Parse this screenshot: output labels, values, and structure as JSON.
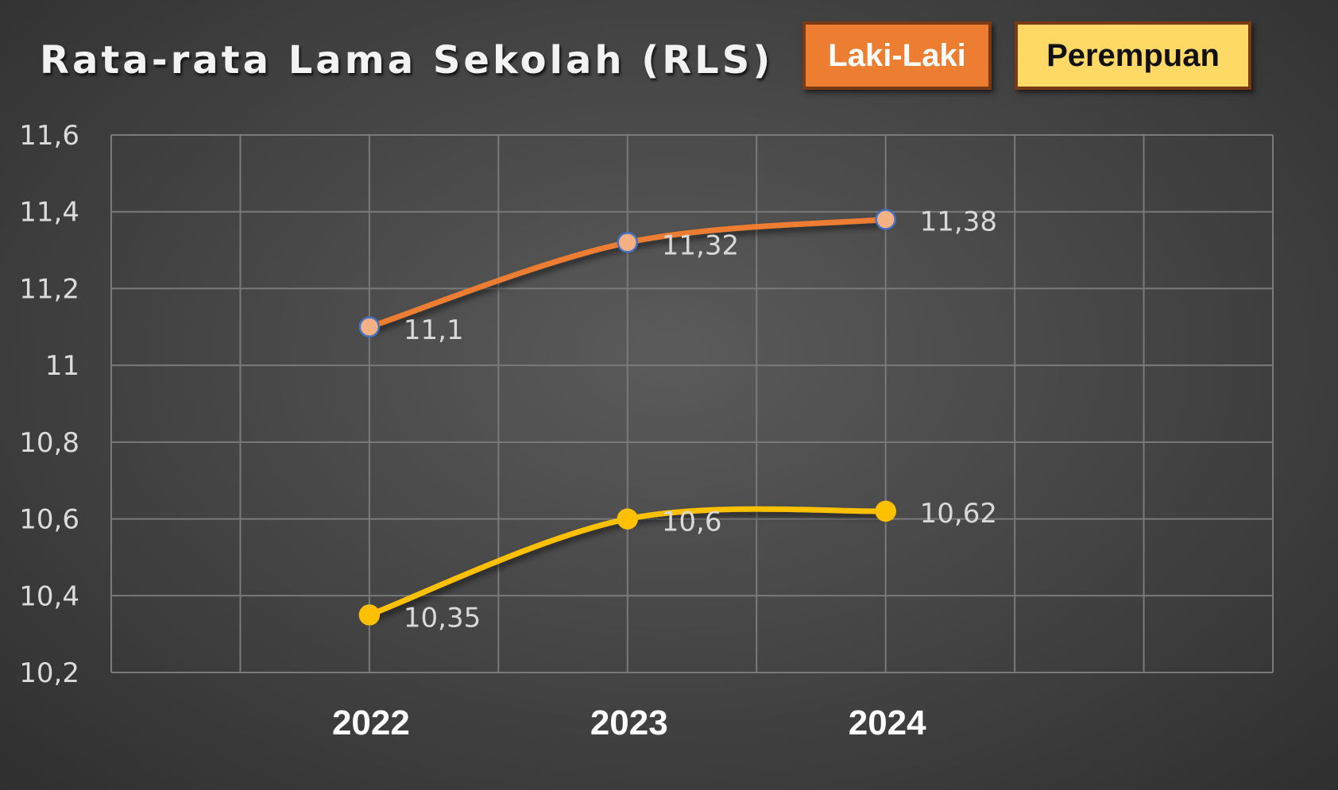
{
  "chart_data": {
    "type": "line",
    "title": "Rata-rata Lama Sekolah (RLS)",
    "xlabel": "",
    "ylabel": "",
    "categories": [
      "2022",
      "2023",
      "2024"
    ],
    "x_slots": 9,
    "category_slots": [
      2,
      4,
      6
    ],
    "ylim": [
      10.2,
      11.6
    ],
    "yticks": [
      10.2,
      10.4,
      10.6,
      10.8,
      11,
      11.2,
      11.4,
      11.6
    ],
    "ytick_labels": [
      "10,2",
      "10,4",
      "10,6",
      "10,8",
      "11",
      "11,2",
      "11,4",
      "11,6"
    ],
    "grid": true,
    "legend_position": "top-right",
    "series": [
      {
        "name": "Laki-Laki",
        "values": [
          11.1,
          11.32,
          11.38
        ],
        "labels": [
          "11,1",
          "11,32",
          "11,38"
        ],
        "color": "#ed7d31",
        "marker_fill": "#f4b183",
        "marker_stroke": "#4472c4"
      },
      {
        "name": "Perempuan",
        "values": [
          10.35,
          10.6,
          10.62
        ],
        "labels": [
          "10,35",
          "10,6",
          "10,62"
        ],
        "color": "#ffc000",
        "marker_fill": "#ffc000",
        "marker_stroke": "#ffc000"
      }
    ]
  },
  "legend": {
    "laki": "Laki-Laki",
    "perempuan": "Perempuan"
  }
}
